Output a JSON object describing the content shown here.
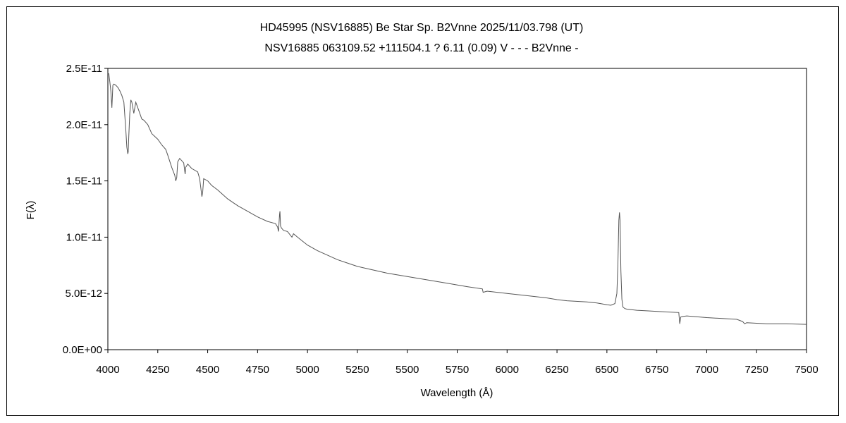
{
  "chart_data": {
    "type": "line",
    "title_line1": "HD45995 (NSV16885)    Be Star    Sp. B2Vnne     2025/11/03.798 (UT)",
    "title_line2": "NSV16885 063109.52 +111504.1 ? 6.11 (0.09) V - - - B2Vnne -",
    "xlabel": "Wavelength (Å)",
    "ylabel": "F(λ)",
    "xlim": [
      4000,
      7500
    ],
    "ylim": [
      0,
      2.5e-11
    ],
    "grid": false,
    "x_ticks": [
      "4000",
      "4250",
      "4500",
      "4750",
      "5000",
      "5250",
      "5500",
      "5750",
      "6000",
      "6250",
      "6500",
      "6750",
      "7000",
      "7250",
      "7500"
    ],
    "y_ticks": [
      "0.0E+00",
      "5.0E-12",
      "1.0E-11",
      "1.5E-11",
      "2.0E-11",
      "2.5E-11"
    ],
    "series": [
      {
        "color": "#555555",
        "x": [
          4000,
          4005,
          4010,
          4015,
          4020,
          4025,
          4030,
          4040,
          4050,
          4060,
          4070,
          4080,
          4090,
          4095,
          4100,
          4102,
          4105,
          4110,
          4115,
          4120,
          4130,
          4140,
          4150,
          4160,
          4170,
          4180,
          4190,
          4200,
          4220,
          4250,
          4270,
          4290,
          4300,
          4320,
          4335,
          4340,
          4345,
          4350,
          4360,
          4380,
          4387,
          4390,
          4400,
          4420,
          4450,
          4460,
          4471,
          4475,
          4480,
          4490,
          4500,
          4520,
          4550,
          4575,
          4600,
          4625,
          4650,
          4700,
          4750,
          4800,
          4840,
          4850,
          4855,
          4860,
          4862,
          4865,
          4870,
          4875,
          4880,
          4900,
          4922,
          4930,
          4950,
          5000,
          5050,
          5100,
          5150,
          5200,
          5250,
          5300,
          5400,
          5500,
          5600,
          5700,
          5800,
          5876,
          5880,
          5900,
          6000,
          6100,
          6200,
          6250,
          6300,
          6400,
          6450,
          6500,
          6520,
          6540,
          6550,
          6555,
          6560,
          6563,
          6566,
          6570,
          6575,
          6580,
          6590,
          6600,
          6650,
          6700,
          6800,
          6860,
          6865,
          6870,
          6880,
          6900,
          7000,
          7100,
          7150,
          7180,
          7190,
          7200,
          7250,
          7300,
          7400,
          7500
        ],
        "y": [
          2.46e-11,
          2.45e-11,
          2.38e-11,
          2.3e-11,
          2.15e-11,
          2.35e-11,
          2.36e-11,
          2.35e-11,
          2.33e-11,
          2.3e-11,
          2.26e-11,
          2.2e-11,
          1.95e-11,
          1.8e-11,
          1.74e-11,
          1.76e-11,
          1.9e-11,
          2.1e-11,
          2.22e-11,
          2.2e-11,
          2.1e-11,
          2.2e-11,
          2.15e-11,
          2.1e-11,
          2.05e-11,
          2.04e-11,
          2.02e-11,
          2e-11,
          1.92e-11,
          1.87e-11,
          1.82e-11,
          1.78e-11,
          1.73e-11,
          1.62e-11,
          1.55e-11,
          1.5e-11,
          1.53e-11,
          1.67e-11,
          1.7e-11,
          1.66e-11,
          1.56e-11,
          1.62e-11,
          1.65e-11,
          1.61e-11,
          1.58e-11,
          1.52e-11,
          1.36e-11,
          1.4e-11,
          1.52e-11,
          1.51e-11,
          1.5e-11,
          1.46e-11,
          1.42e-11,
          1.38e-11,
          1.34e-11,
          1.31e-11,
          1.28e-11,
          1.23e-11,
          1.18e-11,
          1.14e-11,
          1.12e-11,
          1.09e-11,
          1.05e-11,
          1.2e-11,
          1.23e-11,
          1.1e-11,
          1.08e-11,
          1.07e-11,
          1.06e-11,
          1.05e-11,
          1e-11,
          1.03e-11,
          1e-11,
          9.3e-12,
          8.8e-12,
          8.4e-12,
          8e-12,
          7.7e-12,
          7.4e-12,
          7.2e-12,
          6.8e-12,
          6.5e-12,
          6.2e-12,
          5.9e-12,
          5.6e-12,
          5.4e-12,
          5.1e-12,
          5.2e-12,
          5e-12,
          4.8e-12,
          4.6e-12,
          4.45e-12,
          4.35e-12,
          4.25e-12,
          4.15e-12,
          4e-12,
          3.95e-12,
          4.1e-12,
          5e-12,
          7.5e-12,
          1.15e-11,
          1.22e-11,
          1.15e-11,
          7e-12,
          4.5e-12,
          3.8e-12,
          3.65e-12,
          3.6e-12,
          3.5e-12,
          3.45e-12,
          3.35e-12,
          3.3e-12,
          2.3e-12,
          2.9e-12,
          2.95e-12,
          3e-12,
          2.85e-12,
          2.75e-12,
          2.7e-12,
          2.5e-12,
          2.3e-12,
          2.4e-12,
          2.35e-12,
          2.3e-12,
          2.3e-12,
          2.25e-12
        ]
      }
    ]
  }
}
